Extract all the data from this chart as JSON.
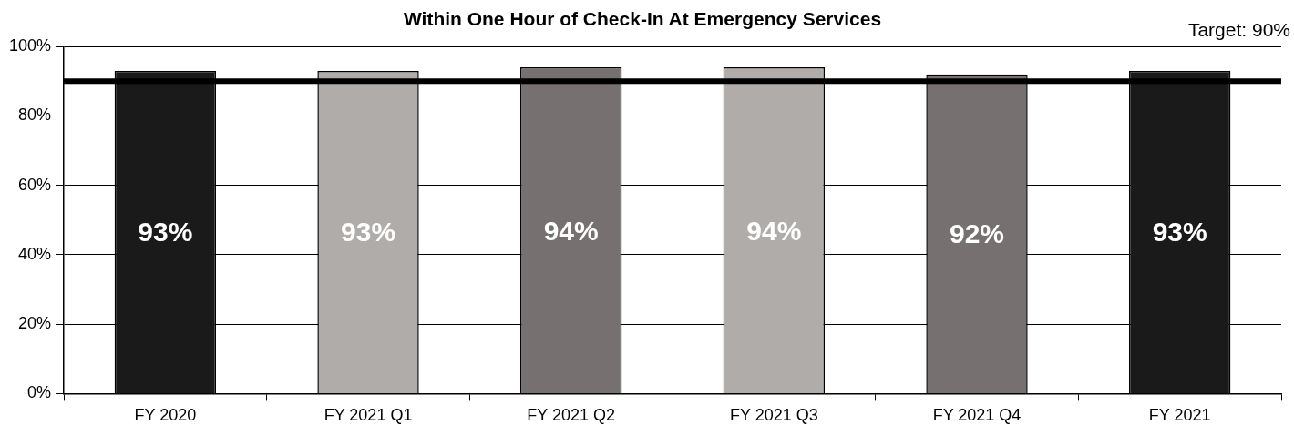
{
  "chart_data": {
    "type": "bar",
    "title": "Within One Hour of Check-In At Emergency Services",
    "categories": [
      "FY 2020",
      "FY 2021 Q1",
      "FY 2021 Q2",
      "FY 2021 Q3",
      "FY 2021 Q4",
      "FY 2021"
    ],
    "values": [
      93,
      93,
      94,
      94,
      92,
      93
    ],
    "colors": [
      "#1a1a1a",
      "#b0acaa",
      "#767170",
      "#b0acaa",
      "#767170",
      "#1a1a1a"
    ],
    "ylim": [
      0,
      100
    ],
    "yticks": [
      {
        "value": 0,
        "label": "0%"
      },
      {
        "value": 20,
        "label": "20%"
      },
      {
        "value": 40,
        "label": "40%"
      },
      {
        "value": 60,
        "label": "60%"
      },
      {
        "value": 80,
        "label": "80%"
      },
      {
        "value": 100,
        "label": "100%"
      }
    ],
    "ref_lines": [
      {
        "axis": "y",
        "value": 90,
        "label": "Target: 90%",
        "color": "#000000"
      }
    ],
    "value_labels": [
      "93%",
      "93%",
      "94%",
      "94%",
      "92%",
      "93%"
    ],
    "grid": "y",
    "legend": false
  }
}
